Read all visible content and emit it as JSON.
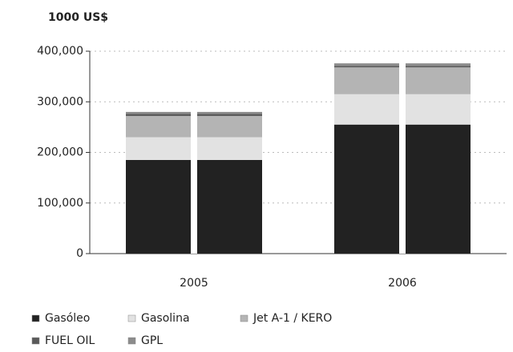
{
  "chart_data": {
    "type": "stacked_bar",
    "y_label": "1000 US$",
    "categories": [
      "2005",
      "2006"
    ],
    "series": [
      {
        "name": "Gasóleo",
        "color": "#222222",
        "values": [
          185000,
          255000
        ]
      },
      {
        "name": "Gasolina",
        "color": "#e2e2e2",
        "values": [
          45000,
          60000
        ]
      },
      {
        "name": "Jet A-1 / KERO",
        "color": "#b4b4b4",
        "values": [
          42000,
          53000
        ]
      },
      {
        "name": "FUEL OIL",
        "color": "#5a5a5a",
        "values": [
          4000,
          3000
        ]
      },
      {
        "name": "GPL",
        "color": "#8c8c8c",
        "values": [
          4000,
          5000
        ]
      }
    ],
    "ylim": [
      0,
      400000
    ],
    "yticks": [
      {
        "value": 0,
        "label": "0"
      },
      {
        "value": 100000,
        "label": "100,000"
      },
      {
        "value": 200000,
        "label": "200,000"
      },
      {
        "value": 300000,
        "label": "300,000"
      },
      {
        "value": 400000,
        "label": "400,000"
      }
    ],
    "grid": true
  }
}
